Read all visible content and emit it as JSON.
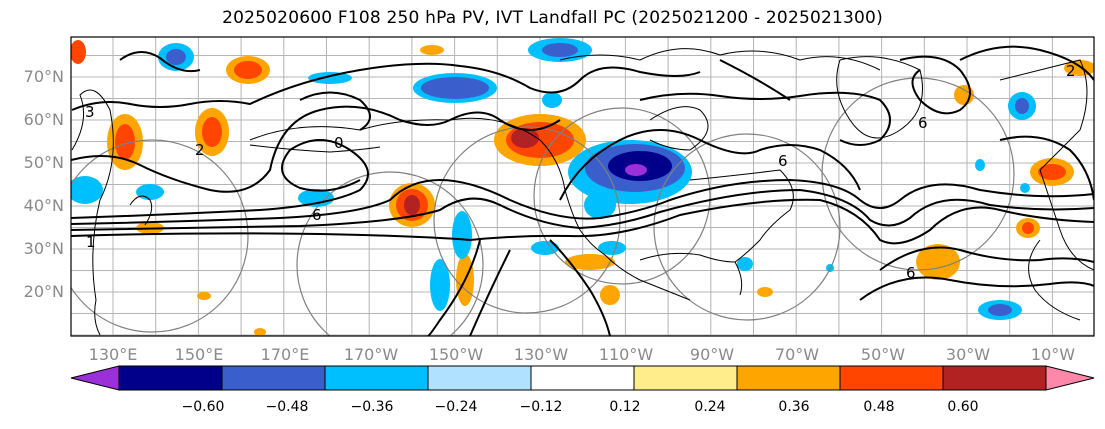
{
  "title": "2025020600 F108 250 hPa PV, IVT Landfall PC (2025021200 - 2025021300)",
  "lat_labels": [
    "70°N",
    "60°N",
    "50°N",
    "40°N",
    "30°N",
    "20°N"
  ],
  "lat_values": [
    70,
    60,
    50,
    40,
    30,
    20
  ],
  "lon_labels": [
    "130°E",
    "150°E",
    "170°E",
    "170°W",
    "150°W",
    "130°W",
    "110°W",
    "90°W",
    "70°W",
    "50°W",
    "30°W",
    "10°W"
  ],
  "colorbar": {
    "colors": [
      "#9b30d9",
      "#00008b",
      "#3a5fcd",
      "#00bfff",
      "#b0e2ff",
      "#ffffff",
      "#ffec8b",
      "#ffa500",
      "#ff4500",
      "#b22222",
      "#ff88aa"
    ],
    "labels": [
      "−0.60",
      "−0.48",
      "−0.36",
      "−0.24",
      "−0.12",
      "0.12",
      "0.24",
      "0.36",
      "0.48",
      "0.60"
    ]
  },
  "contour_labels": [
    "3",
    "2",
    "1",
    "6",
    "6",
    "6",
    "6",
    "2",
    "0"
  ],
  "colors": {
    "pv_contour": "#000000",
    "range_rings": "#808080",
    "grid": "#b4b4b4",
    "axis_text": "#8a8a8a"
  }
}
